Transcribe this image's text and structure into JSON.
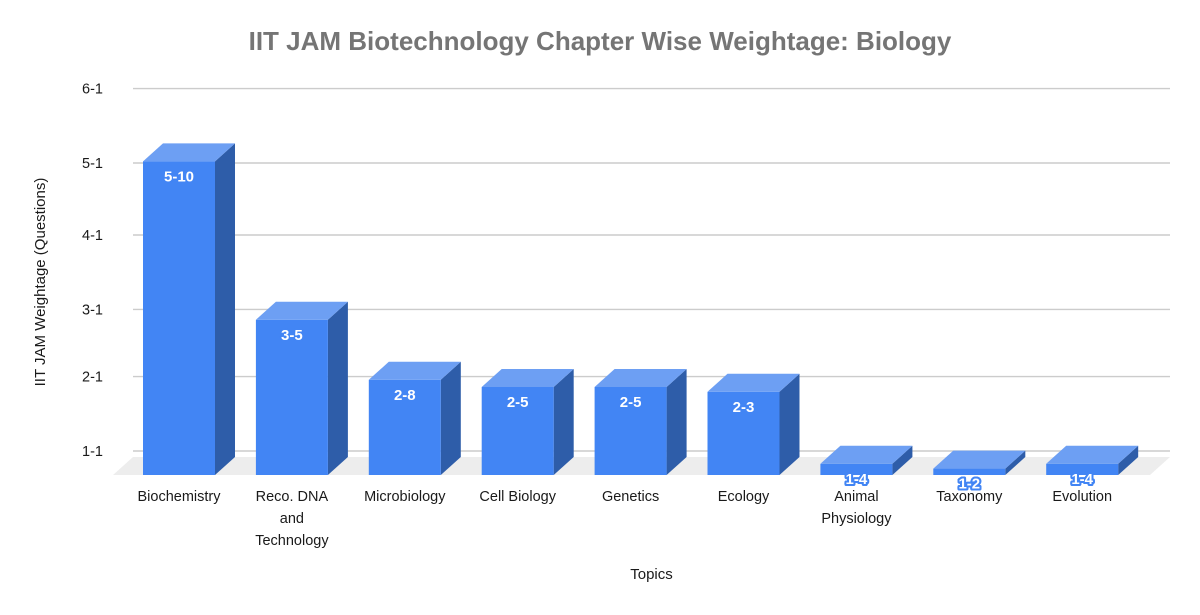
{
  "title": "IIT JAM Biotechnology Chapter Wise Weightage: Biology",
  "chart_data": {
    "type": "bar",
    "style": "3d-column",
    "title": "IIT JAM Biotechnology Chapter Wise Weightage: Biology",
    "xlabel": "Topics",
    "ylabel": "IIT JAM Weightage (Questions)",
    "grid": true,
    "legend": "none",
    "categories": [
      "Biochemistry",
      "Reco. DNA and Technology",
      "Microbiology",
      "Cell Biology",
      "Genetics",
      "Ecology",
      "Animal Physiology",
      "Taxonomy",
      "Evolution"
    ],
    "category_lines": [
      [
        "Biochemistry"
      ],
      [
        "Reco. DNA",
        "and",
        "Technology"
      ],
      [
        "Microbiology"
      ],
      [
        "Cell Biology"
      ],
      [
        "Genetics"
      ],
      [
        "Ecology"
      ],
      [
        "Animal",
        "Physiology"
      ],
      [
        "Taxonomy"
      ],
      [
        "Evolution"
      ]
    ],
    "bar_labels": [
      "5-10",
      "3-5",
      "2-8",
      "2-5",
      "2-5",
      "2-3",
      "1-4",
      "1-2",
      "1-4"
    ],
    "plotted_day_of_year": [
      130,
      64,
      39,
      36,
      36,
      34,
      4,
      2,
      4
    ],
    "y_axis": {
      "ticks": [
        {
          "label": "1-1",
          "day": 1
        },
        {
          "label": "2-1",
          "day": 32
        },
        {
          "label": "3-1",
          "day": 60
        },
        {
          "label": "4-1",
          "day": 91
        },
        {
          "label": "5-1",
          "day": 121
        },
        {
          "label": "6-1",
          "day": 152
        }
      ],
      "min_label": "1-1",
      "max_label": "6-1"
    }
  },
  "colors": {
    "bar_front": "#4285f4",
    "bar_top": "#6d9ff3",
    "bar_side": "#2e5da9",
    "gridline": "#cccccc",
    "floor": "#ededed",
    "title_text": "#757575",
    "axis_text": "#1a1a1a",
    "bar_label_text": "#ffffff"
  }
}
